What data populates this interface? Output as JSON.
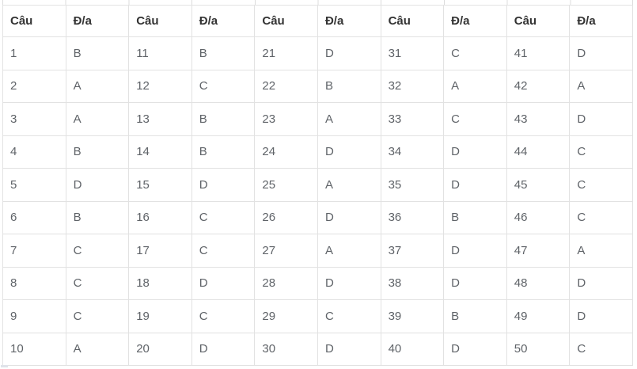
{
  "page": {
    "background_color": "#ffffff",
    "border_color": "#e2e2e2",
    "header_text_color": "#333333",
    "cell_text_color": "#5f6368"
  },
  "table": {
    "header_labels": [
      "Câu",
      "Đ/a",
      "Câu",
      "Đ/a",
      "Câu",
      "Đ/a",
      "Câu",
      "Đ/a",
      "Câu",
      "Đ/a"
    ],
    "rows": [
      [
        "1",
        "B",
        "11",
        "B",
        "21",
        "D",
        "31",
        "C",
        "41",
        "D"
      ],
      [
        "2",
        "A",
        "12",
        "C",
        "22",
        "B",
        "32",
        "A",
        "42",
        "A"
      ],
      [
        "3",
        "A",
        "13",
        "B",
        "23",
        "A",
        "33",
        "C",
        "43",
        "D"
      ],
      [
        "4",
        "B",
        "14",
        "B",
        "24",
        "D",
        "34",
        "D",
        "44",
        "C"
      ],
      [
        "5",
        "D",
        "15",
        "D",
        "25",
        "A",
        "35",
        "D",
        "45",
        "C"
      ],
      [
        "6",
        "B",
        "16",
        "C",
        "26",
        "D",
        "36",
        "B",
        "46",
        "C"
      ],
      [
        "7",
        "C",
        "17",
        "C",
        "27",
        "A",
        "37",
        "D",
        "47",
        "A"
      ],
      [
        "8",
        "C",
        "18",
        "D",
        "28",
        "D",
        "38",
        "D",
        "48",
        "D"
      ],
      [
        "9",
        "C",
        "19",
        "C",
        "29",
        "C",
        "39",
        "B",
        "49",
        "D"
      ],
      [
        "10",
        "A",
        "20",
        "D",
        "30",
        "D",
        "40",
        "D",
        "50",
        "C"
      ]
    ]
  }
}
